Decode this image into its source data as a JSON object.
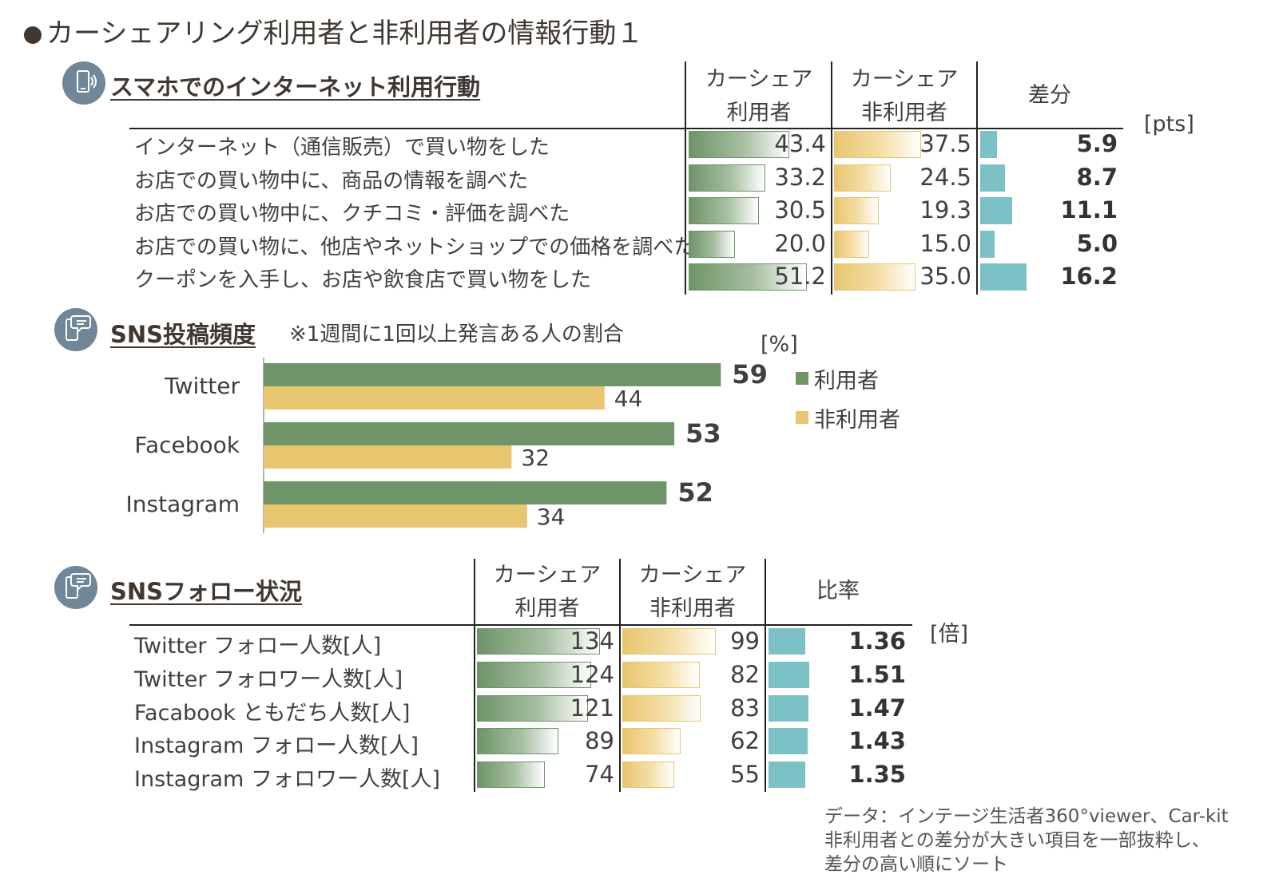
{
  "title": "カーシェアリング利用者と非利用者の情報行動１",
  "colors": {
    "user": "#6e9468",
    "nonuser": "#e8c56f",
    "diff": "#7cc1c5",
    "icon": "#6f8798"
  },
  "sec1": {
    "title": "スマホでのインターネット利用行動",
    "icon": "smartphone-icon",
    "col_user": [
      "カーシェア",
      "利用者"
    ],
    "col_nonuser": [
      "カーシェア",
      "非利用者"
    ],
    "col_diff": "差分",
    "unit": "[pts]",
    "rows": [
      {
        "label": "インターネット（通信販売）で買い物をした",
        "user": "43.4",
        "nonuser": "37.5",
        "diff": "5.9"
      },
      {
        "label": "お店での買い物中に、商品の情報を調べた",
        "user": "33.2",
        "nonuser": "24.5",
        "diff": "8.7"
      },
      {
        "label": "お店での買い物中に、クチコミ・評価を調べた",
        "user": "30.5",
        "nonuser": "19.3",
        "diff": "11.1"
      },
      {
        "label": "お店での買い物に、他店やネットショップでの価格を調べた",
        "user": "20.0",
        "nonuser": "15.0",
        "diff": "5.0"
      },
      {
        "label": "クーポンを入手し、お店や飲食店で買い物をした",
        "user": "51.2",
        "nonuser": "35.0",
        "diff": "16.2"
      }
    ]
  },
  "sec2": {
    "title": "SNS投稿頻度",
    "icon": "chat-phone-icon",
    "note": "※1週間に1回以上発言ある人の割合",
    "unit": "[%]",
    "legend_user": "利用者",
    "legend_nonuser": "非利用者"
  },
  "sec3": {
    "title": "SNSフォロー状況",
    "icon": "chat-phone-icon",
    "col_user": [
      "カーシェア",
      "利用者"
    ],
    "col_nonuser": [
      "カーシェア",
      "非利用者"
    ],
    "col_ratio": "比率",
    "unit": "[倍]",
    "rows": [
      {
        "label": "Twitter フォロー人数[人]",
        "user": "134",
        "nonuser": "99",
        "ratio": "1.36"
      },
      {
        "label": "Twitter フォロワー人数[人]",
        "user": "124",
        "nonuser": "82",
        "ratio": "1.51"
      },
      {
        "label": "Facabook ともだち人数[人]",
        "user": "121",
        "nonuser": "83",
        "ratio": "1.47"
      },
      {
        "label": "Instagram フォロー人数[人]",
        "user": "89",
        "nonuser": "62",
        "ratio": "1.43"
      },
      {
        "label": "Instagram フォロワー人数[人]",
        "user": "74",
        "nonuser": "55",
        "ratio": "1.35"
      }
    ]
  },
  "source": [
    "データ：インテージ生活者360°viewer、Car-kit",
    "非利用者との差分が大きい項目を一部抜粋し、",
    "差分の高い順にソート"
  ],
  "chart_data": [
    {
      "type": "table",
      "title": "スマホでのインターネット利用行動",
      "columns": [
        "カーシェア利用者",
        "カーシェア非利用者",
        "差分"
      ],
      "categories": [
        "インターネット（通信販売）で買い物をした",
        "お店での買い物中に、商品の情報を調べた",
        "お店での買い物中に、クチコミ・評価を調べた",
        "お店での買い物に、他店やネットショップでの価格を調べた",
        "クーポンを入手し、お店や飲食店で買い物をした"
      ],
      "series": [
        {
          "name": "カーシェア利用者",
          "values": [
            43.4,
            33.2,
            30.5,
            20.0,
            51.2
          ]
        },
        {
          "name": "カーシェア非利用者",
          "values": [
            37.5,
            24.5,
            19.3,
            15.0,
            35.0
          ]
        },
        {
          "name": "差分",
          "values": [
            5.9,
            8.7,
            11.1,
            5.0,
            16.2
          ]
        }
      ],
      "unit": "[pts]"
    },
    {
      "type": "bar",
      "title": "SNS投稿頻度",
      "categories": [
        "Twitter",
        "Facebook",
        "Instagram"
      ],
      "series": [
        {
          "name": "利用者",
          "values": [
            59,
            53,
            52
          ]
        },
        {
          "name": "非利用者",
          "values": [
            44,
            32,
            34
          ]
        }
      ],
      "unit": "[%]",
      "xlim": [
        0,
        100
      ],
      "legend": "right"
    },
    {
      "type": "table",
      "title": "SNSフォロー状況",
      "columns": [
        "カーシェア利用者",
        "カーシェア非利用者",
        "比率"
      ],
      "categories": [
        "Twitter フォロー人数[人]",
        "Twitter フォロワー人数[人]",
        "Facabook ともだち人数[人]",
        "Instagram フォロー人数[人]",
        "Instagram フォロワー人数[人]"
      ],
      "series": [
        {
          "name": "カーシェア利用者",
          "values": [
            134,
            124,
            121,
            89,
            74
          ]
        },
        {
          "name": "カーシェア非利用者",
          "values": [
            99,
            82,
            83,
            62,
            55
          ]
        },
        {
          "name": "比率",
          "values": [
            1.36,
            1.51,
            1.47,
            1.43,
            1.35
          ]
        }
      ],
      "unit": "[倍]"
    }
  ]
}
